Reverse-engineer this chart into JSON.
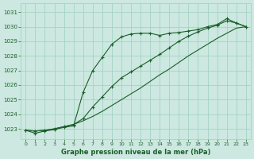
{
  "background_color": "#cce8e0",
  "grid_color": "#9ecfc0",
  "line_color": "#1a5e2a",
  "title": "Graphe pression niveau de la mer (hPa)",
  "ylim": [
    1022.3,
    1031.6
  ],
  "xlim": [
    -0.5,
    23.5
  ],
  "yticks": [
    1023,
    1024,
    1025,
    1026,
    1027,
    1028,
    1029,
    1030,
    1031
  ],
  "xticks": [
    0,
    1,
    2,
    3,
    4,
    5,
    6,
    7,
    8,
    9,
    10,
    11,
    12,
    13,
    14,
    15,
    16,
    17,
    18,
    19,
    20,
    21,
    22,
    23
  ],
  "line_smooth_x": [
    0,
    1,
    2,
    3,
    4,
    5,
    6,
    7,
    8,
    9,
    10,
    11,
    12,
    13,
    14,
    15,
    16,
    17,
    18,
    19,
    20,
    21,
    22,
    23
  ],
  "line_smooth_y": [
    1022.9,
    1022.85,
    1022.9,
    1023.0,
    1023.15,
    1023.3,
    1023.55,
    1023.85,
    1024.2,
    1024.6,
    1025.0,
    1025.4,
    1025.8,
    1026.25,
    1026.7,
    1027.1,
    1027.55,
    1028.0,
    1028.4,
    1028.8,
    1029.2,
    1029.55,
    1029.9,
    1030.0
  ],
  "line_steep_x": [
    0,
    1,
    2,
    3,
    4,
    5,
    6,
    7,
    8,
    9,
    10,
    11,
    12,
    13,
    14,
    15,
    16,
    17,
    18,
    19,
    20,
    21,
    22,
    23
  ],
  "line_steep_y": [
    1022.9,
    1022.7,
    1022.85,
    1022.95,
    1023.1,
    1023.2,
    1025.5,
    1027.0,
    1027.9,
    1028.8,
    1029.3,
    1029.5,
    1029.55,
    1029.55,
    1029.4,
    1029.55,
    1029.6,
    1029.7,
    1029.8,
    1030.0,
    1030.15,
    1030.55,
    1030.25,
    1030.0
  ],
  "line_mid_x": [
    0,
    1,
    2,
    3,
    4,
    5,
    6,
    7,
    8,
    9,
    10,
    11,
    12,
    13,
    14,
    15,
    16,
    17,
    18,
    19,
    20,
    21,
    22,
    23
  ],
  "line_mid_y": [
    1022.9,
    1022.85,
    1022.9,
    1023.0,
    1023.15,
    1023.3,
    1023.7,
    1024.5,
    1025.2,
    1025.9,
    1026.5,
    1026.9,
    1027.3,
    1027.7,
    1028.1,
    1028.55,
    1029.0,
    1029.35,
    1029.65,
    1029.9,
    1030.1,
    1030.4,
    1030.25,
    1030.0
  ]
}
